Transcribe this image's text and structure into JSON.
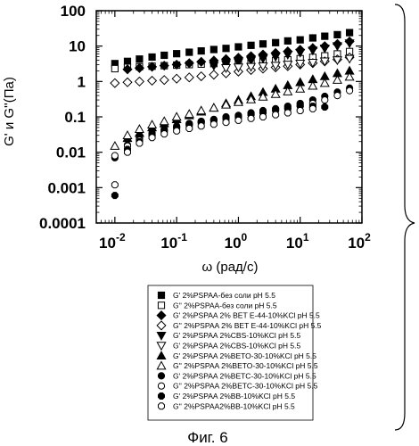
{
  "chart_data": {
    "type": "scatter",
    "xscale": "log",
    "yscale": "log",
    "xlim": [
      0.005,
      100
    ],
    "ylim": [
      0.0001,
      100
    ],
    "xlabel": "ω (рад/с)",
    "ylabel": "G' и G''(Па)",
    "x_ticks": [
      {
        "value": 0.01,
        "base": "10",
        "exp": "-2"
      },
      {
        "value": 0.1,
        "base": "10",
        "exp": "-1"
      },
      {
        "value": 1,
        "base": "10",
        "exp": "0"
      },
      {
        "value": 10,
        "base": "10",
        "exp": "1"
      },
      {
        "value": 100,
        "base": "10",
        "exp": "2"
      }
    ],
    "y_ticks": [
      {
        "value": 0.0001,
        "label": "0.0001"
      },
      {
        "value": 0.001,
        "label": "0.001"
      },
      {
        "value": 0.01,
        "label": "0.01"
      },
      {
        "value": 0.1,
        "label": "0.1"
      },
      {
        "value": 1,
        "label": "1"
      },
      {
        "value": 10,
        "label": "10"
      },
      {
        "value": 100,
        "label": "100"
      }
    ],
    "series": [
      {
        "name": "G' 2%PSPAA-без соли pH 5.5",
        "marker": "square-filled",
        "x": [
          0.01,
          0.016,
          0.025,
          0.04,
          0.063,
          0.1,
          0.16,
          0.25,
          0.4,
          0.63,
          1,
          1.6,
          2.5,
          4,
          6.3,
          10,
          16,
          25,
          40,
          63
        ],
        "y": [
          3.2,
          3.7,
          4.3,
          4.9,
          5.5,
          6.1,
          6.7,
          7.3,
          8,
          8.6,
          9.5,
          10.5,
          11.5,
          12.5,
          14,
          15,
          17,
          19,
          21,
          24
        ]
      },
      {
        "name": "G'' 2%PSPAA-без соли pH 5.5",
        "marker": "square-open",
        "x": [
          0.01,
          0.016,
          0.025,
          0.04,
          0.063,
          0.1,
          0.16,
          0.25,
          0.4,
          0.63,
          1,
          1.6,
          2.5,
          4,
          6.3,
          10,
          16,
          25,
          40,
          63
        ],
        "y": [
          2.3,
          2.5,
          2.6,
          2.7,
          2.8,
          2.9,
          3,
          3.1,
          3.2,
          3.3,
          3.4,
          3.5,
          3.7,
          3.9,
          4.1,
          4.4,
          4.8,
          5.3,
          6,
          7
        ]
      },
      {
        "name": "G' 2%PSPAA 2% BET E-44-10%KCl pH 5.5",
        "marker": "diamond-filled",
        "x": [
          0.016,
          0.025,
          0.04,
          0.063,
          0.1,
          0.16,
          0.25,
          0.4,
          0.63,
          1,
          1.6,
          2.5,
          4,
          6.3,
          10,
          16,
          25,
          40,
          63
        ],
        "y": [
          2.2,
          2.4,
          2.6,
          2.8,
          3,
          3.3,
          3.6,
          3.9,
          4.3,
          4.7,
          5.2,
          5.8,
          6.4,
          7.1,
          7.9,
          8.8,
          10,
          11.5,
          13.5
        ]
      },
      {
        "name": "G'' 2%PSPAA 2% BET E-44-10%KCl pH 5.5",
        "marker": "diamond-open",
        "x": [
          0.01,
          0.016,
          0.025,
          0.04,
          0.063,
          0.1,
          0.16,
          0.25,
          0.4,
          0.63,
          1,
          1.6,
          2.5,
          4,
          6.3,
          10,
          16,
          25,
          40,
          63
        ],
        "y": [
          0.9,
          0.95,
          1,
          1.05,
          1.1,
          1.2,
          1.3,
          1.4,
          1.55,
          1.7,
          1.9,
          2.1,
          2.3,
          2.5,
          2.7,
          3,
          3.3,
          3.7,
          4.2,
          4.8
        ]
      },
      {
        "name": "G'  2%PSPAA 2%CBS-10%KCl pH 5.5",
        "marker": "triangle-down-filled",
        "x": [
          0.4,
          0.63,
          1,
          1.6,
          2.5,
          4,
          6.3,
          10,
          16,
          25,
          40,
          63
        ],
        "y": [
          2.8,
          3.1,
          3.5,
          3.9,
          4.4,
          5,
          5.7,
          6.5,
          7.5,
          8.6,
          10,
          12
        ]
      },
      {
        "name": "G'  2%PSPAA 2%CBS-10%KCl pH 5.5",
        "marker": "triangle-down-open",
        "x": [
          0.63,
          1,
          1.6,
          2.5,
          4,
          6.3,
          10,
          16,
          25,
          40,
          63
        ],
        "y": [
          2.4,
          2.5,
          2.6,
          2.7,
          2.8,
          3,
          3.2,
          3.4,
          3.7,
          4,
          4.4
        ]
      },
      {
        "name": "G' 2%PSPAA 2%BETO-30-10%KCl pH 5.5",
        "marker": "triangle-up-filled",
        "x": [
          0.016,
          0.025,
          0.04,
          0.063,
          0.1,
          0.16,
          0.25,
          0.4,
          0.63,
          1,
          1.6,
          2.5,
          4,
          6.3,
          10,
          16,
          25,
          40,
          63
        ],
        "y": [
          0.025,
          0.035,
          0.05,
          0.065,
          0.085,
          0.11,
          0.14,
          0.18,
          0.24,
          0.3,
          0.38,
          0.5,
          0.62,
          0.78,
          0.95,
          1.15,
          1.4,
          1.7,
          2
        ]
      },
      {
        "name": "G'' 2%PSPAA 2%BETO-30-10%KCl pH 5.5",
        "marker": "triangle-up-open",
        "x": [
          0.01,
          0.016,
          0.025,
          0.04,
          0.063,
          0.1,
          0.16,
          0.25,
          0.4,
          0.63,
          1,
          1.6,
          2.5,
          4,
          6.3,
          10,
          16,
          25,
          40,
          63
        ],
        "y": [
          0.015,
          0.03,
          0.045,
          0.06,
          0.075,
          0.1,
          0.12,
          0.15,
          0.18,
          0.22,
          0.26,
          0.31,
          0.37,
          0.44,
          0.52,
          0.62,
          0.75,
          0.9,
          1.1,
          1.35
        ]
      },
      {
        "name": "G' 2%PSPAA 2%BETC-30-10%KCl pH 5.5",
        "marker": "circle-filled",
        "x": [
          0.01,
          0.016,
          0.025,
          0.04,
          0.063,
          0.1,
          0.16,
          0.25,
          0.4,
          0.63,
          1,
          1.6,
          2.5,
          4,
          6.3,
          10,
          16,
          25,
          40,
          63
        ],
        "y": [
          0.007,
          0.016,
          0.025,
          0.035,
          0.045,
          0.055,
          0.065,
          0.075,
          0.085,
          0.1,
          0.11,
          0.13,
          0.15,
          0.17,
          0.2,
          0.24,
          0.3,
          0.38,
          0.5,
          0.65
        ]
      },
      {
        "name": "G'' 2%PSPAA 2%BETC-30-10%KCl pH 5.5",
        "marker": "circle-open",
        "x": [
          0.01,
          0.016,
          0.025,
          0.04,
          0.063,
          0.1,
          0.16,
          0.25,
          0.4,
          0.63,
          1,
          1.6,
          2.5,
          4,
          6.3,
          10,
          16,
          25,
          40,
          63
        ],
        "y": [
          0.008,
          0.015,
          0.022,
          0.03,
          0.04,
          0.05,
          0.06,
          0.07,
          0.08,
          0.09,
          0.1,
          0.115,
          0.13,
          0.15,
          0.17,
          0.2,
          0.24,
          0.3,
          0.4,
          0.55
        ]
      },
      {
        "name": "G' 2%PSPAA 2%BB-10%KCl pH 5.5",
        "marker": "octagon-filled",
        "x": [
          0.01,
          0.016,
          0.025,
          0.04,
          0.063,
          0.1,
          0.16,
          0.25,
          0.4,
          0.63,
          1,
          1.6,
          2.5,
          4,
          6.3,
          10,
          16,
          25
        ],
        "y": [
          0.0006,
          0.012,
          0.02,
          0.03,
          0.04,
          0.05,
          0.06,
          0.07,
          0.08,
          0.09,
          0.1,
          0.12,
          0.14,
          0.16,
          0.18,
          0.21,
          0.2,
          0.19
        ]
      },
      {
        "name": "G'' 2%PSPAA2%BB-10%KCl pH 5.5",
        "marker": "octagon-open",
        "x": [
          0.01,
          0.016,
          0.025,
          0.04,
          0.063,
          0.1,
          0.16,
          0.25,
          0.4,
          0.63,
          1,
          1.6,
          2.5,
          4,
          6.3,
          10,
          16
        ],
        "y": [
          0.0012,
          0.01,
          0.018,
          0.026,
          0.033,
          0.04,
          0.047,
          0.055,
          0.062,
          0.07,
          0.08,
          0.09,
          0.1,
          0.115,
          0.13,
          0.15,
          0.17
        ]
      }
    ],
    "legend": "bottom-center",
    "grid": false
  },
  "caption": "Фиг. 6"
}
